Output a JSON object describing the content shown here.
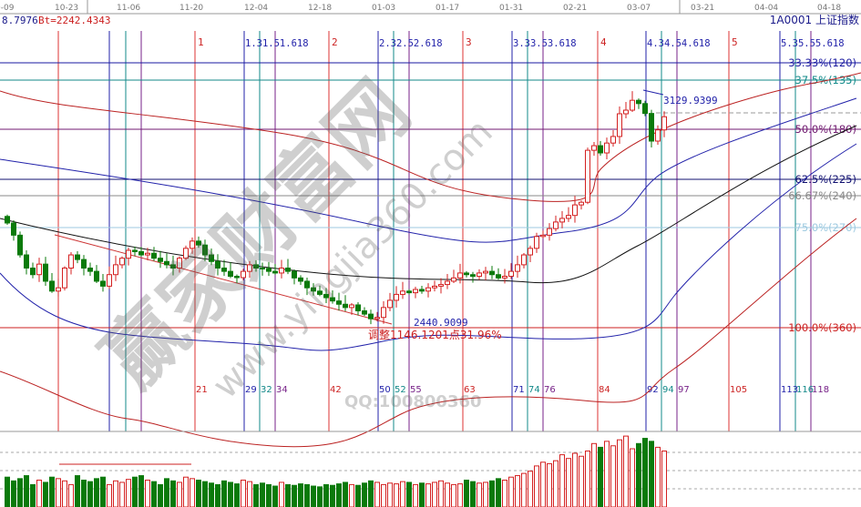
{
  "header": {
    "left_value": "8.7976",
    "bt_label": "Bt=2242.4343",
    "symbol": "1A0001 上证指数"
  },
  "date_axis": [
    "0-09",
    "10-23",
    "11-06",
    "11-20",
    "12-04",
    "12-18",
    "01-03",
    "01-17",
    "01-31",
    "02-21",
    "03-07",
    "03-21",
    "04-04",
    "04-18"
  ],
  "time_cycle_labels": {
    "red": [
      "1",
      "2",
      "3",
      "4",
      "5"
    ],
    "top_fib": [
      "1.31.51.618",
      "2.32.52.618",
      "3.33.53.618",
      "4.34.54.618",
      "5.35.55.618"
    ],
    "bottom_counts": [
      "21",
      "29",
      "32",
      "34",
      "42",
      "50",
      "52",
      "55",
      "63",
      "71",
      "74",
      "76",
      "84",
      "92",
      "94",
      "97",
      "105",
      "113",
      "116",
      "118"
    ]
  },
  "price_levels": [
    {
      "label": "33.33%(120)",
      "color": "#1a1aa0"
    },
    {
      "label": "37.5%(135)",
      "color": "#138a8a"
    },
    {
      "label": "50.0%(180)",
      "color": "#701a70"
    },
    {
      "label": "62.5%(225)",
      "color": "#101070"
    },
    {
      "label": "66.67%(240)",
      "color": "#888888"
    },
    {
      "label": "75.0%(270)",
      "color": "#9ecae0"
    },
    {
      "label": "100.0%(360)",
      "color": "#cc2020"
    }
  ],
  "annotations": {
    "high": "3129.9399",
    "low": "2440.9099",
    "adjust": "调整1146.1201点31.96%"
  },
  "watermark": {
    "brand": "赢家财富网",
    "url": "www.yingjia360.com",
    "qq": "QQ:100800360"
  },
  "colors": {
    "up": "#d42020",
    "down": "#0a7a0a"
  },
  "chart_data": {
    "type": "candlestick",
    "closes": [
      2737,
      2700,
      2640,
      2600,
      2580,
      2612,
      2560,
      2530,
      2540,
      2600,
      2640,
      2626,
      2600,
      2590,
      2560,
      2545,
      2580,
      2610,
      2630,
      2654,
      2650,
      2640,
      2645,
      2630,
      2620,
      2610,
      2600,
      2630,
      2660,
      2682,
      2670,
      2640,
      2620,
      2600,
      2590,
      2575,
      2571,
      2590,
      2610,
      2600,
      2599,
      2590,
      2585,
      2600,
      2590,
      2570,
      2560,
      2540,
      2530,
      2520,
      2510,
      2500,
      2490,
      2480,
      2488,
      2470,
      2460,
      2446,
      2450,
      2480,
      2502,
      2520,
      2530,
      2525,
      2535,
      2530,
      2540,
      2545,
      2550,
      2560,
      2570,
      2585,
      2580,
      2575,
      2585,
      2590,
      2580,
      2570,
      2575,
      2590,
      2610,
      2640,
      2660,
      2696,
      2700,
      2720,
      2740,
      2751,
      2760,
      2792,
      2800,
      2958,
      2972,
      2950,
      2980,
      3000,
      3069,
      3080,
      3110,
      3100,
      3070,
      2986,
      3020,
      3060
    ],
    "volume_relative": [
      40,
      35,
      38,
      42,
      30,
      36,
      33,
      40,
      38,
      35,
      30,
      42,
      36,
      34,
      38,
      40,
      30,
      35,
      33,
      37,
      40,
      42,
      36,
      34,
      30,
      38,
      35,
      33,
      40,
      38,
      36,
      34,
      32,
      30,
      35,
      33,
      31,
      36,
      34,
      30,
      32,
      30,
      28,
      33,
      30,
      29,
      31,
      30,
      28,
      27,
      30,
      29,
      31,
      33,
      30,
      29,
      32,
      35,
      33,
      30,
      32,
      31,
      34,
      33,
      30,
      32,
      31,
      33,
      35,
      32,
      30,
      31,
      36,
      34,
      32,
      33,
      35,
      38,
      36,
      40,
      42,
      45,
      48,
      55,
      60,
      58,
      62,
      70,
      65,
      72,
      68,
      75,
      85,
      80,
      88,
      82,
      90,
      95,
      78,
      85,
      92,
      88,
      80,
      75
    ]
  }
}
